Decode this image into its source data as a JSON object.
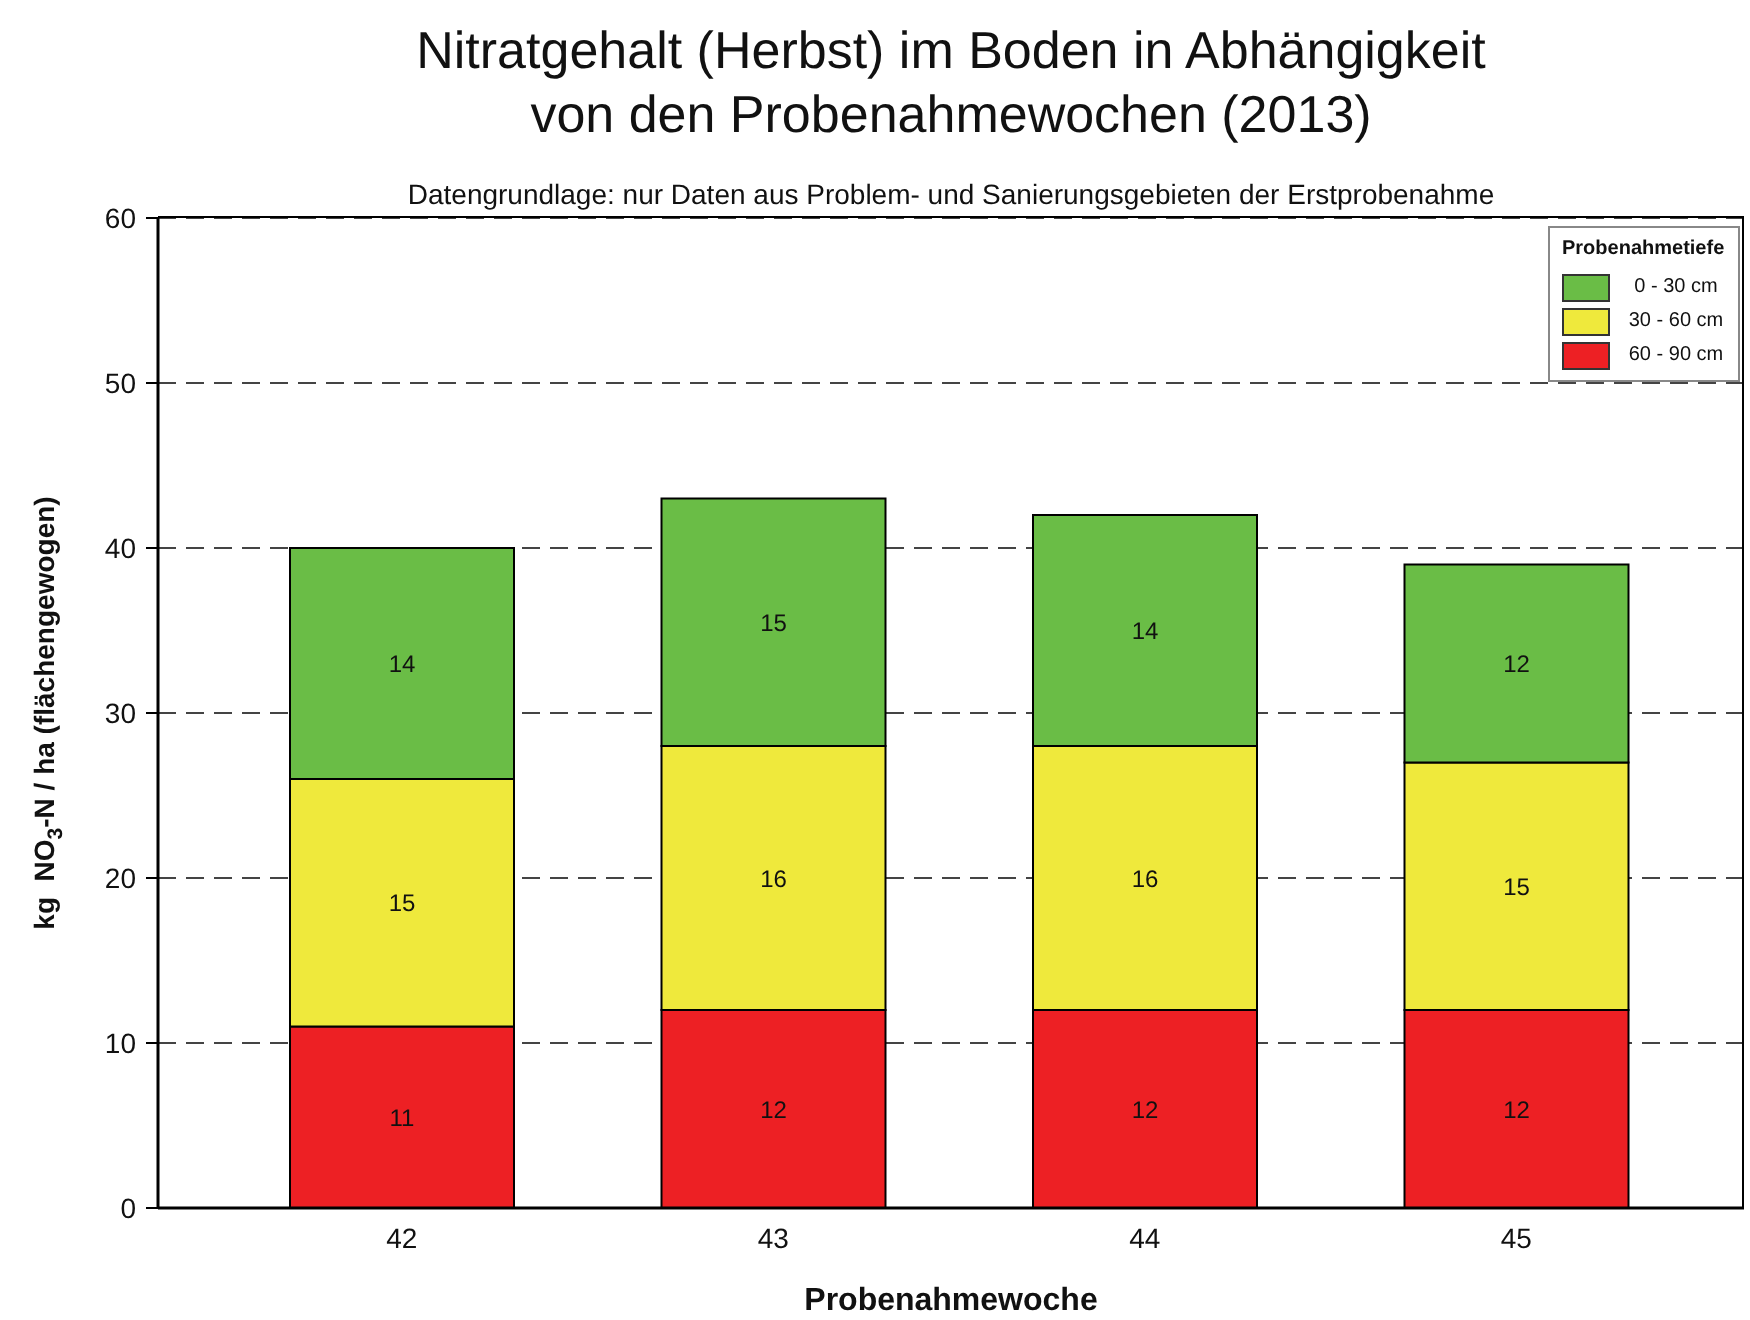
{
  "chart_data": {
    "type": "bar",
    "title": "Nitratgehalt (Herbst) im Boden in Abhängigkeit\nvon den Probenahmewochen (2013)",
    "subtitle": "Datengrundlage: nur Daten aus Problem- und Sanierungsgebieten der Erstprobenahme",
    "xlabel": "Probenahmewoche",
    "ylabel": "kg  NO$_{3}$-N / ha (flächengewogen)",
    "legend_title": "Probenahmetiefe",
    "categories": [
      "42",
      "43",
      "44",
      "45"
    ],
    "series": [
      {
        "name": "60 - 90 cm",
        "color": "#ed2024",
        "values": [
          11,
          12,
          12,
          12
        ]
      },
      {
        "name": "30 - 60 cm",
        "color": "#efe93c",
        "values": [
          15,
          16,
          16,
          15
        ]
      },
      {
        "name": "0 - 30 cm",
        "color": "#6abd46",
        "values": [
          14,
          15,
          14,
          12
        ]
      }
    ],
    "stacked": true,
    "data_labels": true,
    "ylim": [
      0,
      60
    ],
    "yticks": [
      0,
      10,
      20,
      30,
      40,
      50,
      60
    ],
    "grid": "y",
    "legend": "top right"
  }
}
